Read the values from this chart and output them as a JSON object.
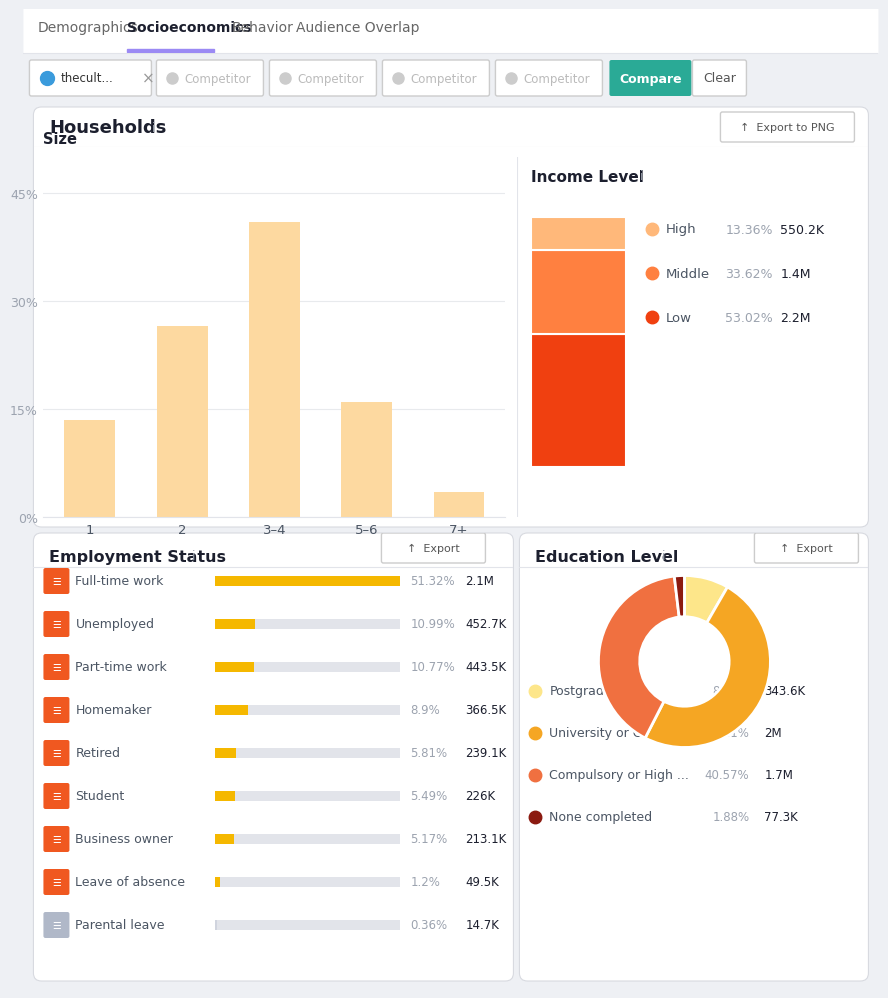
{
  "bg_color": "#eef0f4",
  "card_color": "#ffffff",
  "tab_labels": [
    "Demographics",
    "Socioeconomics",
    "Behavior",
    "Audience Overlap"
  ],
  "active_tab": "Socioeconomics",
  "active_tab_color": "#9b8af4",
  "compare_btn_color": "#2aaa96",
  "households_title": "Households",
  "size_title": "Size",
  "bar_categories": [
    "1",
    "2",
    "3–4",
    "5–6",
    "7+"
  ],
  "bar_values": [
    13.5,
    26.5,
    41.0,
    16.0,
    3.5
  ],
  "bar_color": "#fdd9a0",
  "bar_yticks": [
    0,
    15,
    30,
    45
  ],
  "bar_ytick_labels": [
    "0%",
    "15%",
    "30%",
    "45%"
  ],
  "income_title": "Income Level",
  "income_labels": [
    "High",
    "Middle",
    "Low"
  ],
  "income_pcts": [
    13.36,
    33.62,
    53.02
  ],
  "income_values": [
    "550.2K",
    "1.4M",
    "2.2M"
  ],
  "income_colors": [
    "#ffb87a",
    "#ff8040",
    "#f04010"
  ],
  "employment_title": "Employment Status",
  "employment_items": [
    {
      "label": "Full-time work",
      "pct": "51.32%",
      "value": "2.1M",
      "bar_pct": 0.5132
    },
    {
      "label": "Unemployed",
      "pct": "10.99%",
      "value": "452.7K",
      "bar_pct": 0.1099
    },
    {
      "label": "Part-time work",
      "pct": "10.77%",
      "value": "443.5K",
      "bar_pct": 0.1077
    },
    {
      "label": "Homemaker",
      "pct": "8.9%",
      "value": "366.5K",
      "bar_pct": 0.089
    },
    {
      "label": "Retired",
      "pct": "5.81%",
      "value": "239.1K",
      "bar_pct": 0.0581
    },
    {
      "label": "Student",
      "pct": "5.49%",
      "value": "226K",
      "bar_pct": 0.0549
    },
    {
      "label": "Business owner",
      "pct": "5.17%",
      "value": "213.1K",
      "bar_pct": 0.0517
    },
    {
      "label": "Leave of absence",
      "pct": "1.2%",
      "value": "49.5K",
      "bar_pct": 0.012
    },
    {
      "label": "Parental leave",
      "pct": "0.36%",
      "value": "14.7K",
      "bar_pct": 0.0036
    }
  ],
  "employment_bar_fill": "#f5b800",
  "employment_bar_bg": "#e2e4ea",
  "education_title": "Education Level",
  "education_labels": [
    "Postgraduate",
    "University or College",
    "Compulsory or High ...",
    "None completed"
  ],
  "education_pcts": [
    8.34,
    49.21,
    40.57,
    1.88
  ],
  "education_values": [
    "343.6K",
    "2M",
    "1.7M",
    "77.3K"
  ],
  "education_colors": [
    "#fde68a",
    "#f5a623",
    "#f07040",
    "#8b1a10"
  ],
  "text_dark": "#1c1f2e",
  "text_gray": "#9ca3af",
  "text_medium": "#4b5563",
  "text_light": "#aaaaaa",
  "border_color": "#e2e4ea"
}
